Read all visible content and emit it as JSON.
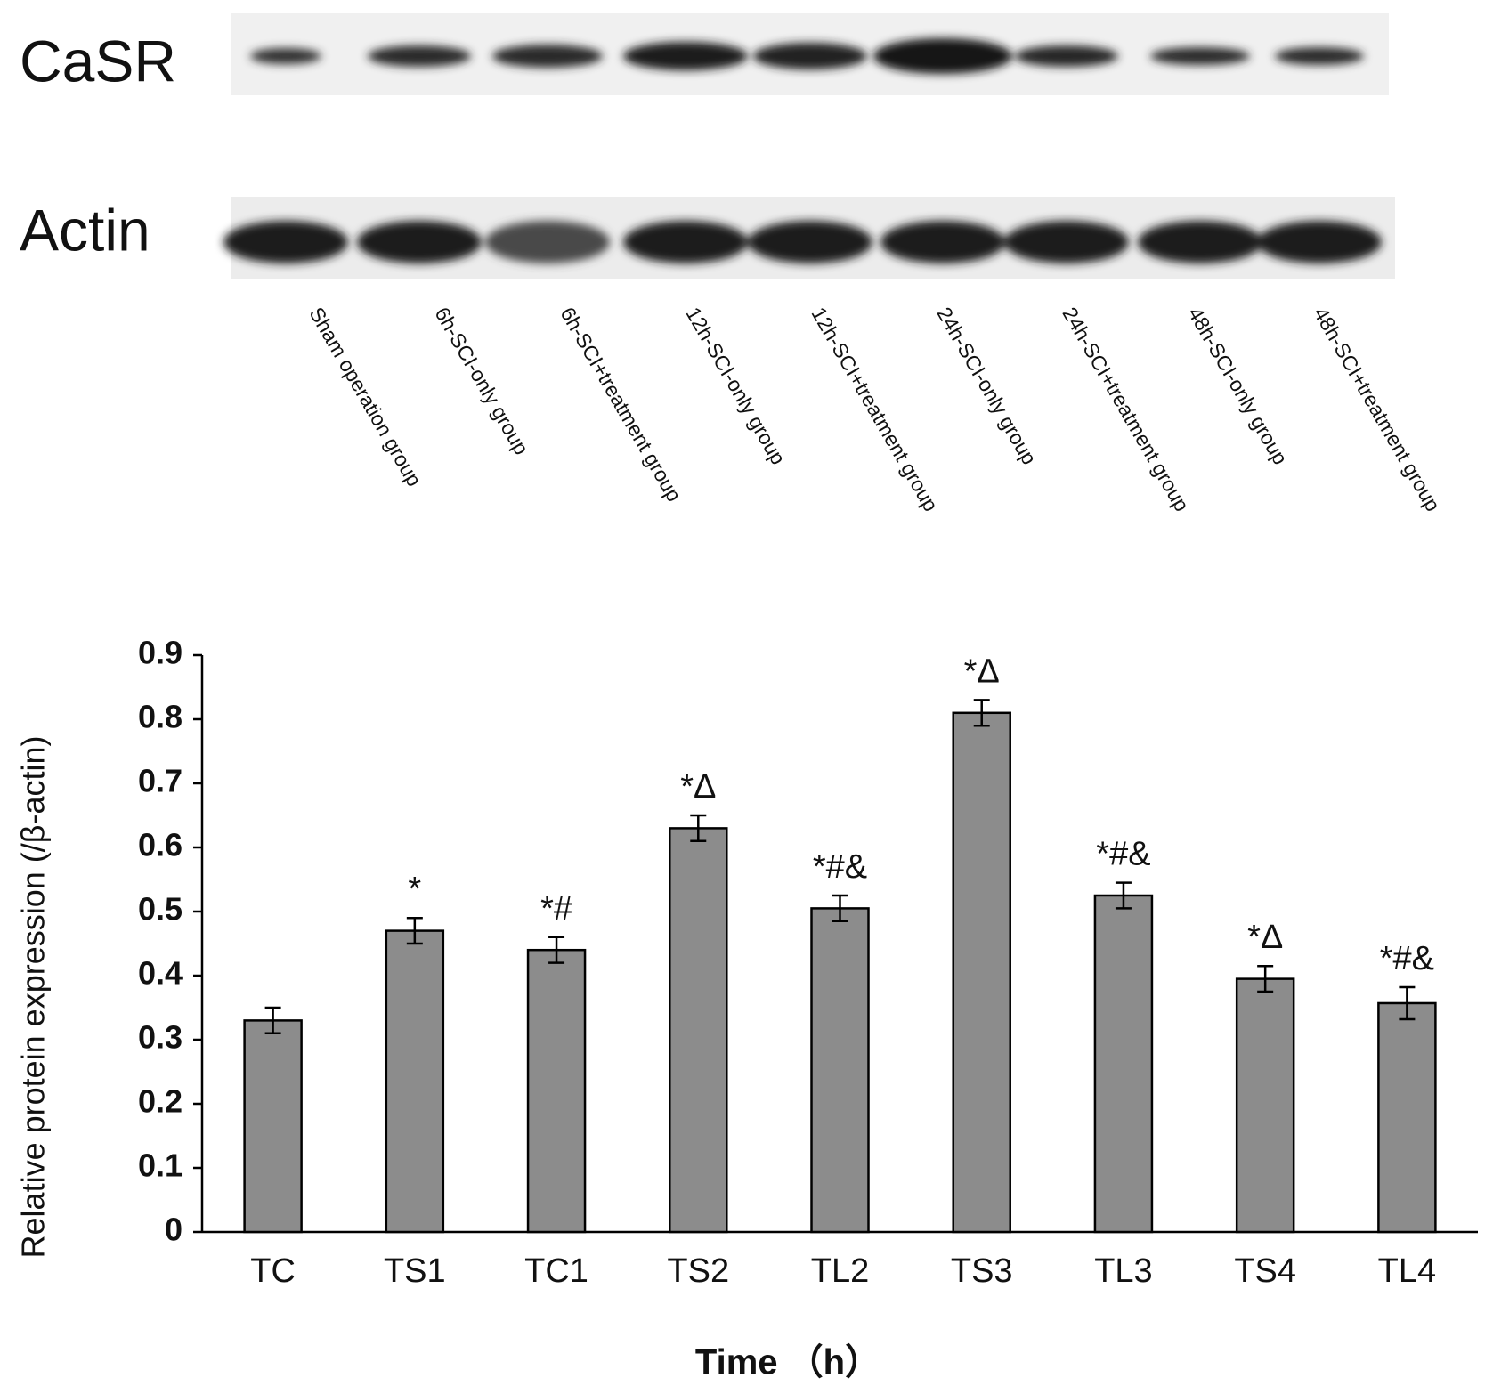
{
  "blot": {
    "rows": [
      "CaSR",
      "Actin"
    ],
    "lanes": [
      "Sham operation group",
      "6h-SCI-only group",
      "6h-SCI+treatment group",
      "12h-SCI-only group",
      "12h-SCI+treatment group",
      "24h-SCI-only group",
      "24h-SCI+treatment group",
      "48h-SCI-only group",
      "48h-SCI+treatment group"
    ]
  },
  "chart_data": {
    "type": "bar",
    "y_label": "Relative protein expression (/β-actin)",
    "x_label": "Time （h）",
    "categories": [
      "TC",
      "TS1",
      "TC1",
      "TS2",
      "TL2",
      "TS3",
      "TL3",
      "TS4",
      "TL4"
    ],
    "values": [
      0.33,
      0.47,
      0.44,
      0.63,
      0.505,
      0.81,
      0.525,
      0.395,
      0.357
    ],
    "errors": [
      0.02,
      0.02,
      0.02,
      0.02,
      0.02,
      0.02,
      0.02,
      0.02,
      0.025
    ],
    "annotations": [
      null,
      "*",
      "*#",
      "*Δ",
      "*#&",
      "*Δ",
      "*#&",
      "*Δ",
      "*#&"
    ],
    "color": "#8c8c8c",
    "ylim": [
      0,
      0.9
    ],
    "yticks": [
      0,
      0.1,
      0.2,
      0.3,
      0.4,
      0.5,
      0.6,
      0.7,
      0.8,
      0.9
    ]
  }
}
